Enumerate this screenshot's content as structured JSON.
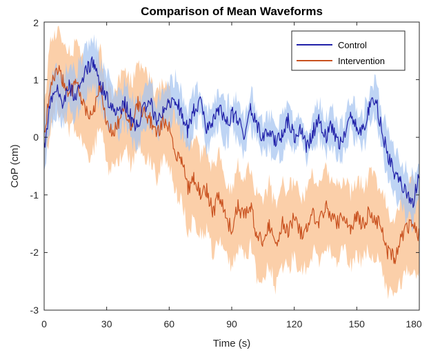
{
  "chart_data": {
    "type": "line",
    "title": "Comparison of Mean Waveforms",
    "xlabel": "Time (s)",
    "ylabel": "CoP (cm)",
    "xlim": [
      0,
      180
    ],
    "ylim": [
      -3,
      2
    ],
    "xticks": [
      0,
      30,
      60,
      90,
      120,
      150,
      180
    ],
    "yticks": [
      -3,
      -2,
      -1,
      0,
      1,
      2
    ],
    "xtick_labels": [
      "0",
      "30",
      "60",
      "90",
      "120",
      "150",
      "180"
    ],
    "ytick_labels": [
      "-3",
      "-2",
      "-1",
      "0",
      "1",
      "2"
    ],
    "grid": false,
    "legend_position": "top-right",
    "series": [
      {
        "name": "Control",
        "color": "#1f1fa8",
        "band_color": "#a8c6f0",
        "x": [
          0,
          3,
          6,
          9,
          12,
          15,
          18,
          21,
          24,
          27,
          30,
          33,
          36,
          39,
          42,
          45,
          48,
          51,
          54,
          57,
          60,
          63,
          66,
          69,
          72,
          75,
          78,
          81,
          84,
          87,
          90,
          93,
          96,
          99,
          102,
          105,
          108,
          111,
          114,
          117,
          120,
          123,
          126,
          129,
          132,
          135,
          138,
          141,
          144,
          147,
          150,
          153,
          156,
          159,
          162,
          165,
          168,
          171,
          174,
          177,
          180
        ],
        "values": [
          -0.2,
          0.6,
          0.8,
          0.6,
          0.9,
          0.7,
          1.0,
          1.2,
          1.3,
          0.9,
          0.7,
          0.5,
          0.4,
          0.6,
          0.3,
          0.2,
          0.5,
          0.6,
          0.3,
          0.5,
          0.6,
          0.7,
          0.4,
          0.1,
          0.5,
          0.6,
          0.1,
          0.3,
          0.5,
          0.2,
          0.4,
          0.3,
          0.0,
          0.5,
          0.2,
          0.0,
          0.1,
          -0.1,
          0.0,
          0.3,
          0.0,
          0.2,
          -0.2,
          0.1,
          0.3,
          0.0,
          0.2,
          -0.1,
          0.0,
          0.4,
          0.2,
          0.1,
          0.5,
          0.7,
          0.1,
          -0.3,
          -0.6,
          -0.8,
          -1.0,
          -1.1,
          -0.7
        ],
        "band": [
          0.4,
          0.4,
          0.4,
          0.4,
          0.4,
          0.4,
          0.4,
          0.4,
          0.45,
          0.4,
          0.4,
          0.35,
          0.35,
          0.35,
          0.35,
          0.35,
          0.35,
          0.35,
          0.35,
          0.35,
          0.35,
          0.35,
          0.35,
          0.35,
          0.3,
          0.3,
          0.3,
          0.3,
          0.3,
          0.3,
          0.3,
          0.3,
          0.3,
          0.3,
          0.3,
          0.3,
          0.3,
          0.3,
          0.3,
          0.3,
          0.3,
          0.3,
          0.3,
          0.3,
          0.3,
          0.3,
          0.3,
          0.3,
          0.3,
          0.3,
          0.3,
          0.3,
          0.3,
          0.35,
          0.35,
          0.35,
          0.4,
          0.4,
          0.4,
          0.4,
          0.4
        ]
      },
      {
        "name": "Intervention",
        "color": "#c8501e",
        "band_color": "#f9bf8c",
        "x": [
          0,
          3,
          6,
          9,
          12,
          15,
          18,
          21,
          24,
          27,
          30,
          33,
          36,
          39,
          42,
          45,
          48,
          51,
          54,
          57,
          60,
          63,
          66,
          69,
          72,
          75,
          78,
          81,
          84,
          87,
          90,
          93,
          96,
          99,
          102,
          105,
          108,
          111,
          114,
          117,
          120,
          123,
          126,
          129,
          132,
          135,
          138,
          141,
          144,
          147,
          150,
          153,
          156,
          159,
          162,
          165,
          168,
          171,
          174,
          177,
          180
        ],
        "values": [
          0.0,
          0.9,
          1.2,
          1.0,
          0.8,
          0.9,
          0.7,
          0.4,
          0.5,
          0.9,
          0.2,
          0.1,
          0.3,
          0.5,
          0.2,
          0.6,
          0.4,
          0.3,
          0.0,
          0.3,
          0.2,
          -0.3,
          -0.4,
          -0.9,
          -0.7,
          -1.0,
          -0.9,
          -1.3,
          -1.0,
          -1.4,
          -1.6,
          -1.2,
          -1.4,
          -1.2,
          -1.7,
          -1.8,
          -1.5,
          -1.9,
          -1.5,
          -1.6,
          -1.4,
          -1.7,
          -1.6,
          -1.3,
          -1.5,
          -1.2,
          -1.4,
          -1.5,
          -1.3,
          -1.6,
          -1.4,
          -1.5,
          -1.3,
          -1.4,
          -1.6,
          -2.0,
          -2.1,
          -1.8,
          -1.6,
          -1.5,
          -1.7
        ],
        "band": [
          0.6,
          0.7,
          0.7,
          0.7,
          0.7,
          0.7,
          0.7,
          0.7,
          0.7,
          0.7,
          0.7,
          0.7,
          0.7,
          0.7,
          0.7,
          0.7,
          0.7,
          0.7,
          0.7,
          0.7,
          0.7,
          0.7,
          0.7,
          0.7,
          0.7,
          0.7,
          0.7,
          0.7,
          0.7,
          0.7,
          0.7,
          0.7,
          0.7,
          0.7,
          0.7,
          0.7,
          0.7,
          0.7,
          0.7,
          0.7,
          0.65,
          0.65,
          0.65,
          0.65,
          0.65,
          0.65,
          0.65,
          0.65,
          0.65,
          0.65,
          0.65,
          0.65,
          0.65,
          0.65,
          0.7,
          0.7,
          0.7,
          0.7,
          0.7,
          0.7,
          0.7
        ]
      }
    ]
  }
}
